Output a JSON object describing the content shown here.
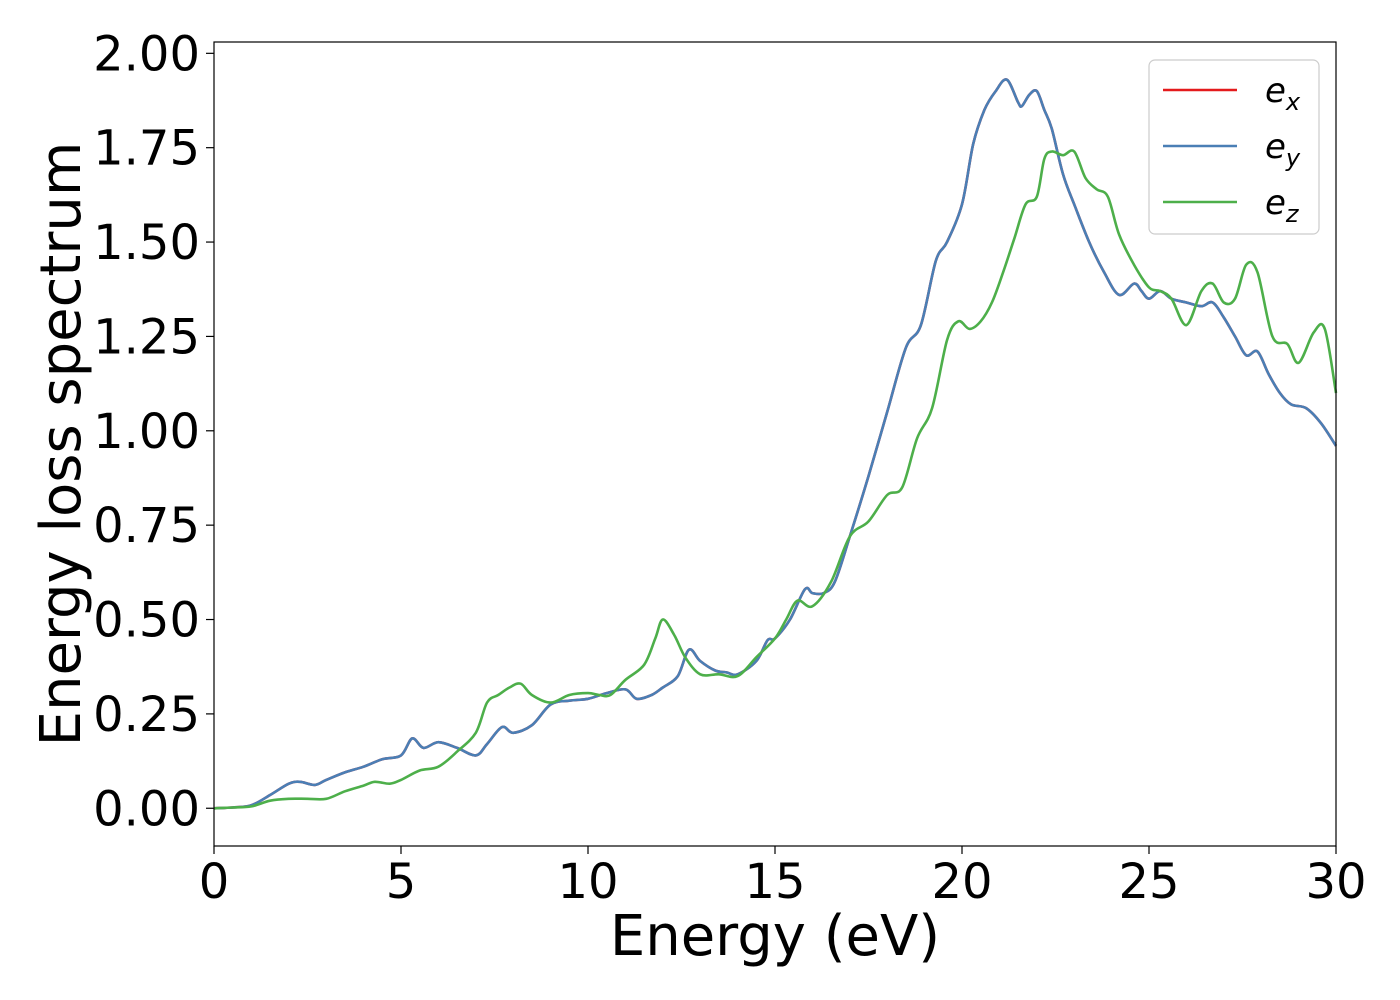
{
  "chart_data": {
    "type": "line",
    "title": "",
    "xlabel": "Energy (eV)",
    "ylabel": "Energy loss spectrum",
    "xlim": [
      0,
      30
    ],
    "ylim": [
      -0.1,
      2.03
    ],
    "xticks": [
      0,
      5,
      10,
      15,
      20,
      25,
      30
    ],
    "xtick_labels": [
      "0",
      "5",
      "10",
      "15",
      "20",
      "25",
      "30"
    ],
    "yticks": [
      0,
      0.25,
      0.5,
      0.75,
      1.0,
      1.25,
      1.5,
      1.75,
      2.0
    ],
    "ytick_labels": [
      "0.00",
      "0.25",
      "0.50",
      "0.75",
      "1.00",
      "1.25",
      "1.50",
      "1.75",
      "2.00"
    ],
    "grid": false,
    "legend_position": "top-right",
    "series": [
      {
        "name": "e_x",
        "label_base": "e",
        "label_sub": "x",
        "color": "#e41a1c",
        "x": [
          0,
          0.5,
          1,
          1.5,
          2,
          2.3,
          2.7,
          3,
          3.5,
          4,
          4.5,
          5,
          5.3,
          5.6,
          6,
          6.5,
          7,
          7.3,
          7.7,
          8,
          8.5,
          9,
          9.5,
          10,
          10.5,
          11,
          11.3,
          11.7,
          12,
          12.4,
          12.7,
          13,
          13.4,
          13.7,
          14,
          14.5,
          14.8,
          15,
          15.4,
          15.8,
          16,
          16.3,
          16.6,
          17,
          17.5,
          18,
          18.5,
          18.9,
          19.3,
          19.6,
          20,
          20.3,
          20.6,
          20.9,
          21.2,
          21.5,
          21.6,
          21.8,
          22,
          22.2,
          22.4,
          22.7,
          23,
          23.4,
          23.8,
          24.2,
          24.6,
          24.8,
          25,
          25.3,
          25.6,
          26,
          26.4,
          26.7,
          27,
          27.3,
          27.6,
          27.9,
          28.2,
          28.5,
          28.8,
          29.2,
          29.6,
          30
        ],
        "y": [
          0,
          0.002,
          0.008,
          0.035,
          0.065,
          0.07,
          0.062,
          0.075,
          0.095,
          0.11,
          0.13,
          0.14,
          0.185,
          0.16,
          0.175,
          0.16,
          0.14,
          0.17,
          0.215,
          0.2,
          0.22,
          0.275,
          0.285,
          0.29,
          0.305,
          0.315,
          0.29,
          0.3,
          0.32,
          0.35,
          0.42,
          0.39,
          0.365,
          0.36,
          0.355,
          0.39,
          0.445,
          0.45,
          0.5,
          0.58,
          0.57,
          0.57,
          0.6,
          0.72,
          0.88,
          1.05,
          1.22,
          1.28,
          1.45,
          1.5,
          1.6,
          1.76,
          1.85,
          1.9,
          1.93,
          1.87,
          1.86,
          1.89,
          1.9,
          1.85,
          1.8,
          1.68,
          1.6,
          1.5,
          1.42,
          1.36,
          1.39,
          1.37,
          1.35,
          1.37,
          1.35,
          1.34,
          1.33,
          1.34,
          1.3,
          1.25,
          1.2,
          1.21,
          1.15,
          1.1,
          1.07,
          1.06,
          1.02,
          0.96
        ]
      },
      {
        "name": "e_y",
        "label_base": "e",
        "label_sub": "y",
        "color": "#4a7fb5",
        "x": [
          0,
          0.5,
          1,
          1.5,
          2,
          2.3,
          2.7,
          3,
          3.5,
          4,
          4.5,
          5,
          5.3,
          5.6,
          6,
          6.5,
          7,
          7.3,
          7.7,
          8,
          8.5,
          9,
          9.5,
          10,
          10.5,
          11,
          11.3,
          11.7,
          12,
          12.4,
          12.7,
          13,
          13.4,
          13.7,
          14,
          14.5,
          14.8,
          15,
          15.4,
          15.8,
          16,
          16.3,
          16.6,
          17,
          17.5,
          18,
          18.5,
          18.9,
          19.3,
          19.6,
          20,
          20.3,
          20.6,
          20.9,
          21.2,
          21.5,
          21.6,
          21.8,
          22,
          22.2,
          22.4,
          22.7,
          23,
          23.4,
          23.8,
          24.2,
          24.6,
          24.8,
          25,
          25.3,
          25.6,
          26,
          26.4,
          26.7,
          27,
          27.3,
          27.6,
          27.9,
          28.2,
          28.5,
          28.8,
          29.2,
          29.6,
          30
        ],
        "y": [
          0,
          0.002,
          0.008,
          0.035,
          0.065,
          0.07,
          0.062,
          0.075,
          0.095,
          0.11,
          0.13,
          0.14,
          0.185,
          0.16,
          0.175,
          0.16,
          0.14,
          0.17,
          0.215,
          0.2,
          0.22,
          0.275,
          0.285,
          0.29,
          0.305,
          0.315,
          0.29,
          0.3,
          0.32,
          0.35,
          0.42,
          0.39,
          0.365,
          0.36,
          0.355,
          0.39,
          0.445,
          0.45,
          0.5,
          0.58,
          0.57,
          0.57,
          0.6,
          0.72,
          0.88,
          1.05,
          1.22,
          1.28,
          1.45,
          1.5,
          1.6,
          1.76,
          1.85,
          1.9,
          1.93,
          1.87,
          1.86,
          1.89,
          1.9,
          1.85,
          1.8,
          1.68,
          1.6,
          1.5,
          1.42,
          1.36,
          1.39,
          1.37,
          1.35,
          1.37,
          1.35,
          1.34,
          1.33,
          1.34,
          1.3,
          1.25,
          1.2,
          1.21,
          1.15,
          1.1,
          1.07,
          1.06,
          1.02,
          0.96
        ]
      },
      {
        "name": "e_z",
        "label_base": "e",
        "label_sub": "z",
        "color": "#4daf4a",
        "x": [
          0,
          0.5,
          1,
          1.5,
          2,
          2.5,
          3,
          3.5,
          4,
          4.3,
          4.7,
          5,
          5.5,
          6,
          6.5,
          7,
          7.3,
          7.6,
          7.9,
          8.2,
          8.5,
          9,
          9.5,
          10,
          10.3,
          10.6,
          11,
          11.5,
          11.8,
          12,
          12.3,
          12.6,
          13,
          13.5,
          14,
          14.5,
          15,
          15.3,
          15.6,
          16,
          16.5,
          17,
          17.5,
          18,
          18.4,
          18.8,
          19.2,
          19.6,
          19.9,
          20.2,
          20.5,
          20.8,
          21.1,
          21.4,
          21.7,
          22,
          22.2,
          22.4,
          22.7,
          23,
          23.3,
          23.6,
          23.9,
          24.2,
          24.6,
          25,
          25.3,
          25.6,
          26,
          26.4,
          26.7,
          27,
          27.3,
          27.6,
          27.9,
          28.3,
          28.7,
          29,
          29.4,
          29.7,
          30
        ],
        "y": [
          0,
          0.002,
          0.005,
          0.02,
          0.025,
          0.025,
          0.025,
          0.045,
          0.06,
          0.07,
          0.065,
          0.075,
          0.1,
          0.11,
          0.15,
          0.2,
          0.28,
          0.3,
          0.32,
          0.33,
          0.3,
          0.28,
          0.3,
          0.305,
          0.3,
          0.3,
          0.34,
          0.38,
          0.45,
          0.5,
          0.46,
          0.4,
          0.355,
          0.355,
          0.35,
          0.4,
          0.45,
          0.5,
          0.55,
          0.535,
          0.6,
          0.72,
          0.76,
          0.83,
          0.85,
          0.98,
          1.06,
          1.24,
          1.29,
          1.27,
          1.29,
          1.34,
          1.42,
          1.51,
          1.6,
          1.62,
          1.72,
          1.74,
          1.73,
          1.74,
          1.67,
          1.64,
          1.62,
          1.52,
          1.44,
          1.38,
          1.37,
          1.35,
          1.28,
          1.37,
          1.39,
          1.34,
          1.35,
          1.44,
          1.42,
          1.25,
          1.23,
          1.18,
          1.26,
          1.27,
          1.1
        ]
      }
    ]
  }
}
